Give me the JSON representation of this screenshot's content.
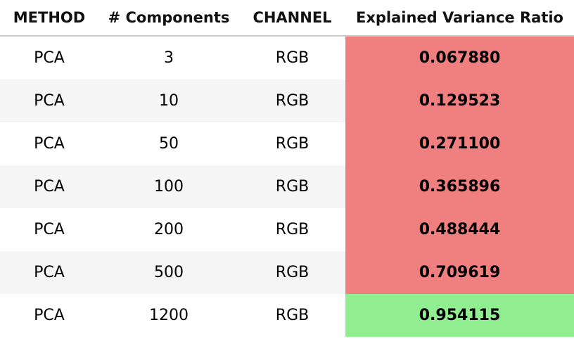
{
  "table": {
    "headers": [
      "METHOD",
      "# Components",
      "CHANNEL",
      "Explained Variance Ratio"
    ],
    "colors": {
      "low_highlight": "#f08080",
      "high_highlight": "#90ee90",
      "row_even_bg": "#f5f5f5",
      "row_odd_bg": "#ffffff"
    },
    "rows": [
      {
        "method": "PCA",
        "components": "3",
        "channel": "RGB",
        "ratio": "0.067880",
        "highlight": "low"
      },
      {
        "method": "PCA",
        "components": "10",
        "channel": "RGB",
        "ratio": "0.129523",
        "highlight": "low"
      },
      {
        "method": "PCA",
        "components": "50",
        "channel": "RGB",
        "ratio": "0.271100",
        "highlight": "low"
      },
      {
        "method": "PCA",
        "components": "100",
        "channel": "RGB",
        "ratio": "0.365896",
        "highlight": "low"
      },
      {
        "method": "PCA",
        "components": "200",
        "channel": "RGB",
        "ratio": "0.488444",
        "highlight": "low"
      },
      {
        "method": "PCA",
        "components": "500",
        "channel": "RGB",
        "ratio": "0.709619",
        "highlight": "low"
      },
      {
        "method": "PCA",
        "components": "1200",
        "channel": "RGB",
        "ratio": "0.954115",
        "highlight": "high"
      }
    ]
  }
}
